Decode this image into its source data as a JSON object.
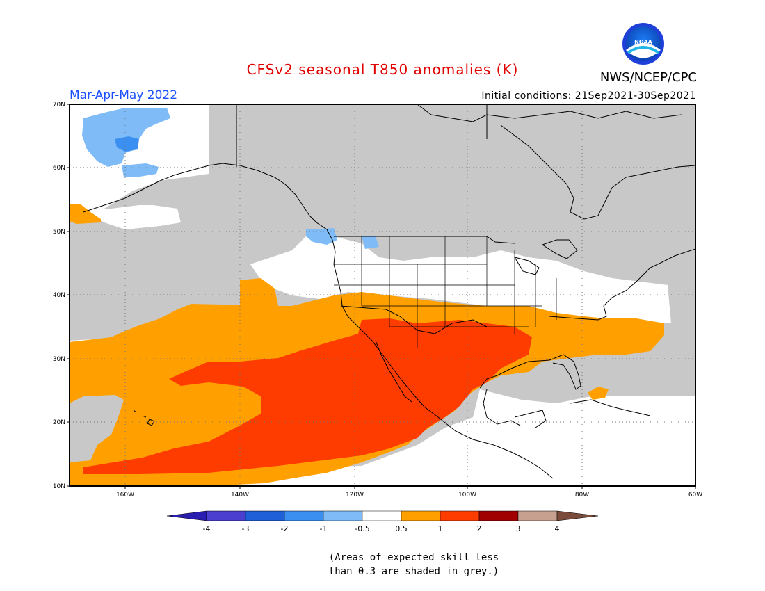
{
  "header": {
    "title": "CFSv2 seasonal T850 anomalies (K)",
    "org": "NWS/NCEP/CPC",
    "season": "Mar-Apr-May 2022",
    "initial_conditions": "Initial conditions: 21Sep2021-30Sep2021",
    "logo_text": "NOAA"
  },
  "axes": {
    "lat_labels": [
      "70N",
      "60N",
      "50N",
      "40N",
      "30N",
      "20N",
      "10N"
    ],
    "lon_labels": [
      "160W",
      "140W",
      "120W",
      "100W",
      "80W",
      "60W"
    ]
  },
  "colorbar": {
    "labels": [
      "-4",
      "-3",
      "-2",
      "-1",
      "-0.5",
      "0.5",
      "1",
      "2",
      "3",
      "4"
    ],
    "colors": [
      "#2a1eb0",
      "#4b3fd0",
      "#1f5fd8",
      "#3a8ff0",
      "#7fbcf7",
      "#ffffff",
      "#ffa000",
      "#ff3c00",
      "#a00000",
      "#c8a090",
      "#7a4a3a"
    ]
  },
  "footnote": {
    "line1": "(Areas of expected skill less",
    "line2": "than 0.3 are shaded in grey.)"
  },
  "colors": {
    "skill_grey": "#c8c8c8",
    "neutral": "#ffffff",
    "warm1": "#ffa000",
    "warm2": "#ff3c00",
    "cool1": "#7fbcf7",
    "cool2": "#3a8ff0",
    "title": "#e00000",
    "season": "#1a4fff"
  }
}
